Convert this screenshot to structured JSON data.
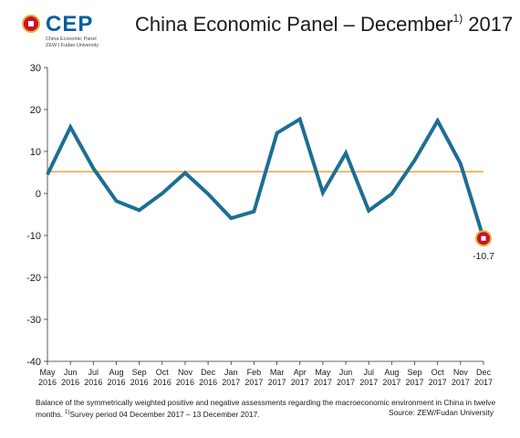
{
  "logo": {
    "word": "CEP",
    "line1": "China Economic Panel",
    "line2": "ZEW | Fudan University"
  },
  "title": {
    "main": "China Economic Panel – December",
    "footnote_mark": "1)",
    "year": " 2017"
  },
  "chart_data": {
    "type": "line",
    "title": "China Economic Panel – December 1) 2017",
    "categories": [
      [
        "May",
        "2016"
      ],
      [
        "Jun",
        "2016"
      ],
      [
        "Jul",
        "2016"
      ],
      [
        "Aug",
        "2016"
      ],
      [
        "Sep",
        "2016"
      ],
      [
        "Oct",
        "2016"
      ],
      [
        "Nov",
        "2016"
      ],
      [
        "Dec",
        "2016"
      ],
      [
        "Jan",
        "2017"
      ],
      [
        "Feb",
        "2017"
      ],
      [
        "Mar",
        "2017"
      ],
      [
        "Apr",
        "2017"
      ],
      [
        "May",
        "2017"
      ],
      [
        "Jun",
        "2017"
      ],
      [
        "Jul",
        "2017"
      ],
      [
        "Aug",
        "2017"
      ],
      [
        "Sep",
        "2017"
      ],
      [
        "Oct",
        "2017"
      ],
      [
        "Nov",
        "2017"
      ],
      [
        "Dec",
        "2017"
      ]
    ],
    "series": [
      {
        "values": [
          4.5,
          15.8,
          6.0,
          -1.8,
          -4.0,
          0.0,
          4.9,
          -0.1,
          -5.9,
          -4.3,
          14.4,
          17.7,
          0.2,
          9.6,
          -4.1,
          -0.1,
          7.9,
          17.3,
          7.1,
          -10.7
        ],
        "color": "#1c6e94"
      }
    ],
    "reference_line": {
      "value": 5.2,
      "color": "#e8a33c"
    },
    "ylim": [
      -40,
      30
    ],
    "yticks": [
      30,
      20,
      10,
      0,
      -10,
      -20,
      -30,
      -40
    ],
    "grid": false,
    "highlight": {
      "index": 19,
      "label": "-10.7",
      "marker_color": "#c8102e",
      "ring_color": "#e3b23c"
    }
  },
  "footnote": {
    "text": "Balance of the symmetrically weighted positive and negative assessments regarding the macroeconomic environment in China in twelve months.",
    "sup": "1)",
    "survey": "Survey period 04 December 2017 – 13 December 2017."
  },
  "source": "Source: ZEW/Fudan University"
}
